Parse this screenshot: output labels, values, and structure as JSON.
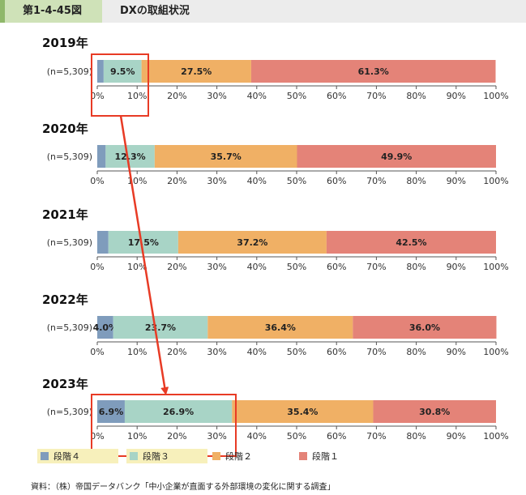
{
  "header": {
    "figure_number": "第1-4-45図",
    "title": "DXの取組状況"
  },
  "colors": {
    "段階4": "#7f9cbc",
    "段階3": "#a8d4c6",
    "段階2": "#f0b065",
    "段階1": "#e48378",
    "highlight": "#e83b25",
    "legend_label_bg": "#f7f0bb"
  },
  "chart_data": {
    "type": "bar",
    "orientation": "horizontal",
    "stacked": true,
    "xlim": [
      0,
      100
    ],
    "x_ticks": [
      "0%",
      "10%",
      "20%",
      "30%",
      "40%",
      "50%",
      "60%",
      "70%",
      "80%",
      "90%",
      "100%"
    ],
    "segment_order": [
      "段階4",
      "段階3",
      "段階2",
      "段階1"
    ],
    "panels": [
      {
        "year": "2019年",
        "n_label": "(n=5,309)",
        "values": [
          1.6,
          9.5,
          27.5,
          61.3
        ],
        "labels": [
          "",
          "9.5%",
          "27.5%",
          "61.3%"
        ],
        "highlight": true
      },
      {
        "year": "2020年",
        "n_label": "(n=5,309)",
        "values": [
          2.1,
          12.3,
          35.7,
          49.9
        ],
        "labels": [
          "",
          "12.3%",
          "35.7%",
          "49.9%"
        ],
        "highlight": false
      },
      {
        "year": "2021年",
        "n_label": "(n=5,309)",
        "values": [
          2.8,
          17.5,
          37.2,
          42.5
        ],
        "labels": [
          "",
          "17.5%",
          "37.2%",
          "42.5%"
        ],
        "highlight": false
      },
      {
        "year": "2022年",
        "n_label": "(n=5,309)",
        "values": [
          4.0,
          23.7,
          36.4,
          36.0
        ],
        "labels": [
          "4.0%",
          "23.7%",
          "36.4%",
          "36.0%"
        ],
        "highlight": false
      },
      {
        "year": "2023年",
        "n_label": "(n=5,309)",
        "values": [
          6.9,
          26.9,
          35.4,
          30.8
        ],
        "labels": [
          "6.9%",
          "26.9%",
          "35.4%",
          "30.8%"
        ],
        "highlight": true
      }
    ],
    "legend": [
      {
        "key": "段階4",
        "label": "段階４"
      },
      {
        "key": "段階3",
        "label": "段階３"
      },
      {
        "key": "段階2",
        "label": "段階２"
      },
      {
        "key": "段階1",
        "label": "段階１"
      }
    ],
    "annotation": "arrow from 2019 highlight box to 2023 highlight box"
  },
  "source_note": "資料：（株）帝国データバンク「中小企業が直面する外部環境の変化に関する調査」"
}
